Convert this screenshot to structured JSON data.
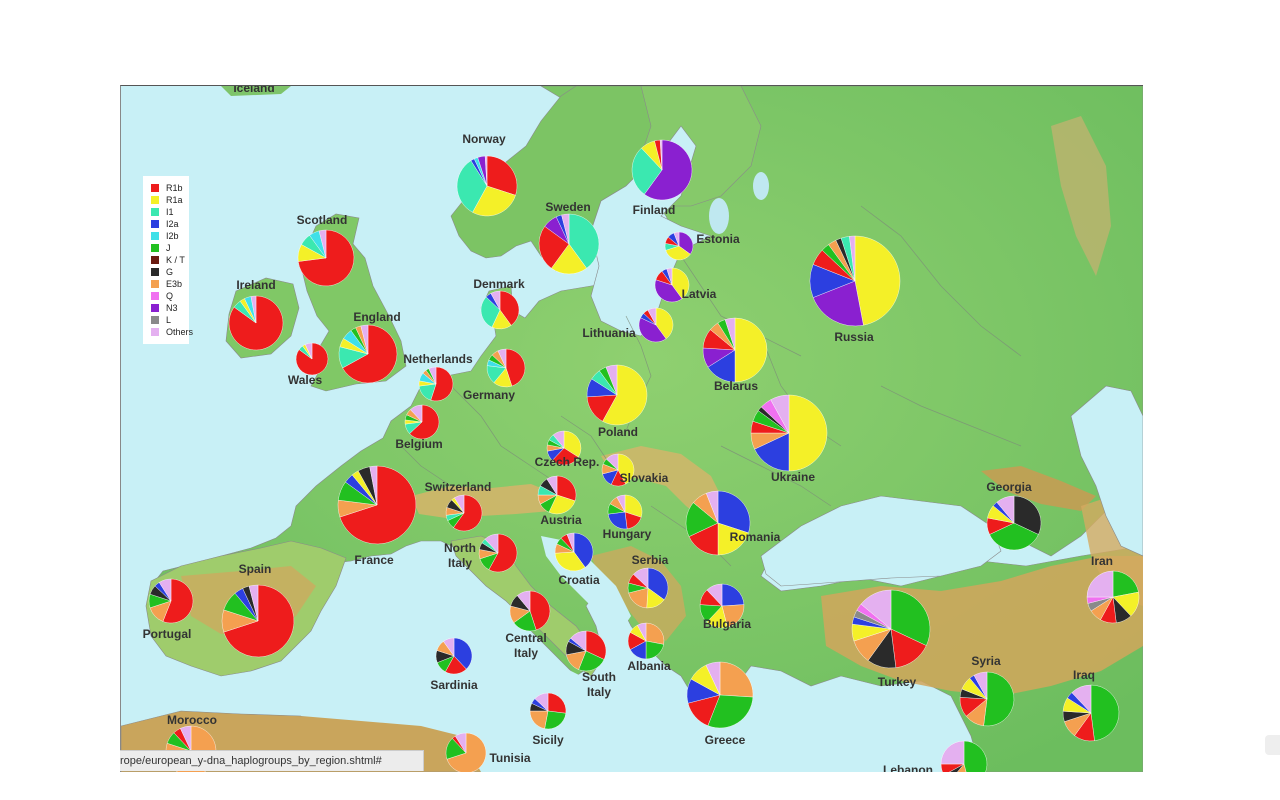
{
  "page_url_status": "rope/european_y-dna_haplogroups_by_region.shtml#",
  "colors": {
    "sea": "#c8f0f6",
    "land_low": "#7ec46a",
    "land_mid": "#9fcf6f",
    "land_high": "#d9b66a",
    "mountain": "#c69a55",
    "lake": "#bfe8f0"
  },
  "legend": [
    {
      "label": "R1b",
      "color": "#ee1c1c"
    },
    {
      "label": "R1a",
      "color": "#f4f028"
    },
    {
      "label": "I1",
      "color": "#3be8b0"
    },
    {
      "label": "I2a",
      "color": "#2c3fe0"
    },
    {
      "label": "I2b",
      "color": "#3fe0e8"
    },
    {
      "label": "J",
      "color": "#22c020"
    },
    {
      "label": "K / T",
      "color": "#6a1a10"
    },
    {
      "label": "G",
      "color": "#2a2a2a"
    },
    {
      "label": "E3b",
      "color": "#f4a050"
    },
    {
      "label": "Q",
      "color": "#f070f0"
    },
    {
      "label": "N3",
      "color": "#8a20d0"
    },
    {
      "label": "L",
      "color": "#8a8a8a"
    },
    {
      "label": "Others",
      "color": "#e4b0f0"
    }
  ],
  "regions": [
    {
      "name": "Iceland"
    },
    {
      "name": "Norway",
      "shares": {
        "R1b": 30,
        "R1a": 28,
        "I1": 33,
        "I2a": 2,
        "I2b": 2,
        "N3": 4,
        "Others": 1
      }
    },
    {
      "name": "Finland",
      "shares": {
        "N3": 60,
        "I1": 28,
        "R1a": 8,
        "R1b": 3,
        "Others": 1
      }
    },
    {
      "name": "Sweden",
      "shares": {
        "I1": 40,
        "R1a": 20,
        "R1b": 25,
        "N3": 8,
        "I2a": 3,
        "Others": 4
      }
    },
    {
      "name": "Scotland",
      "shares": {
        "R1b": 73,
        "R1a": 10,
        "I1": 7,
        "I2b": 6,
        "Others": 4
      }
    },
    {
      "name": "Estonia",
      "shares": {
        "N3": 35,
        "R1a": 35,
        "I1": 8,
        "R1b": 8,
        "I2a": 8,
        "Others": 6
      }
    },
    {
      "name": "Ireland",
      "shares": {
        "R1b": 85,
        "I1": 5,
        "R1a": 3,
        "I2b": 4,
        "Others": 3
      }
    },
    {
      "name": "Denmark",
      "shares": {
        "R1b": 40,
        "R1a": 17,
        "I1": 30,
        "I2a": 5,
        "Others": 8
      }
    },
    {
      "name": "Latvia",
      "shares": {
        "R1a": 40,
        "N3": 40,
        "R1b": 10,
        "I2a": 5,
        "Others": 5
      }
    },
    {
      "name": "Russia",
      "shares": {
        "R1a": 47,
        "N3": 22,
        "I2a": 12,
        "R1b": 6,
        "J": 3,
        "E3b": 3,
        "G": 2,
        "I1": 3,
        "Others": 2
      }
    },
    {
      "name": "England",
      "shares": {
        "R1b": 67,
        "I1": 12,
        "R1a": 5,
        "I2b": 6,
        "J": 3,
        "E3b": 3,
        "Others": 4
      }
    },
    {
      "name": "Lithuania",
      "shares": {
        "R1a": 40,
        "N3": 42,
        "I2a": 5,
        "R1b": 5,
        "Others": 8
      }
    },
    {
      "name": "Wales",
      "shares": {
        "R1b": 85,
        "I1": 5,
        "R1a": 3,
        "Others": 7
      }
    },
    {
      "name": "Netherlands",
      "shares": {
        "R1b": 55,
        "I1": 18,
        "R1a": 5,
        "I2b": 8,
        "E3b": 4,
        "J": 3,
        "Others": 7
      }
    },
    {
      "name": "Germany",
      "shares": {
        "R1b": 45,
        "R1a": 16,
        "I1": 16,
        "I2b": 5,
        "J": 5,
        "E3b": 6,
        "Others": 7
      }
    },
    {
      "name": "Belarus",
      "shares": {
        "R1a": 50,
        "I2a": 16,
        "N3": 10,
        "R1b": 10,
        "E3b": 5,
        "J": 4,
        "Others": 5
      }
    },
    {
      "name": "Poland",
      "shares": {
        "R1a": 58,
        "R1b": 16,
        "I2a": 10,
        "I1": 6,
        "J": 4,
        "Others": 6
      }
    },
    {
      "name": "Belgium",
      "shares": {
        "R1b": 63,
        "I1": 10,
        "R1a": 4,
        "J": 5,
        "E3b": 6,
        "Others": 12
      }
    },
    {
      "name": "Czech Rep.",
      "shares": {
        "R1a": 34,
        "R1b": 28,
        "I2a": 10,
        "E3b": 6,
        "J": 5,
        "I1": 6,
        "Others": 11
      }
    },
    {
      "name": "Ukraine",
      "shares": {
        "R1a": 50,
        "I2a": 18,
        "E3b": 7,
        "R1b": 5,
        "J": 5,
        "G": 2,
        "Q": 5,
        "Others": 8
      }
    },
    {
      "name": "Slovakia",
      "shares": {
        "R1a": 42,
        "R1b": 15,
        "I2a": 14,
        "E3b": 10,
        "J": 6,
        "Others": 13
      }
    },
    {
      "name": "Switzerland",
      "shares": {
        "R1b": 60,
        "J": 8,
        "I1": 5,
        "E3b": 7,
        "G": 8,
        "R1a": 3,
        "Others": 9
      }
    },
    {
      "name": "France",
      "shares": {
        "R1b": 70,
        "E3b": 7,
        "J": 8,
        "I2a": 4,
        "R1a": 3,
        "G": 5,
        "Others": 3
      }
    },
    {
      "name": "Austria",
      "shares": {
        "R1b": 30,
        "R1a": 27,
        "J": 10,
        "E3b": 8,
        "I1": 8,
        "G": 8,
        "Others": 9
      }
    },
    {
      "name": "Hungary",
      "shares": {
        "R1a": 30,
        "R1b": 18,
        "I2a": 25,
        "J": 10,
        "E3b": 9,
        "Others": 8
      }
    },
    {
      "name": "Romania",
      "shares": {
        "I2a": 30,
        "R1a": 20,
        "R1b": 18,
        "J": 18,
        "E3b": 8,
        "Others": 6
      }
    },
    {
      "name": "Georgia",
      "shares": {
        "G": 32,
        "J": 36,
        "R1b": 10,
        "R1a": 8,
        "I2a": 3,
        "Others": 11
      }
    },
    {
      "name": "North Italy",
      "shares": {
        "R1b": 58,
        "J": 12,
        "E3b": 8,
        "G": 6,
        "I1": 4,
        "Others": 12
      }
    },
    {
      "name": "Croatia",
      "shares": {
        "I2a": 40,
        "R1a": 34,
        "E3b": 8,
        "J": 6,
        "R1b": 6,
        "Others": 6
      }
    },
    {
      "name": "Iran",
      "shares": {
        "J": 22,
        "R1a": 16,
        "G": 10,
        "R1b": 10,
        "E3b": 8,
        "L": 5,
        "Q": 4,
        "Others": 25
      }
    },
    {
      "name": "Spain",
      "shares": {
        "R1b": 70,
        "E3b": 10,
        "J": 9,
        "I2a": 4,
        "G": 3,
        "Others": 4
      }
    },
    {
      "name": "Serbia",
      "shares": {
        "I2a": 35,
        "R1a": 16,
        "E3b": 20,
        "J": 8,
        "R1b": 8,
        "Others": 13
      }
    },
    {
      "name": "Portugal",
      "shares": {
        "R1b": 56,
        "E3b": 14,
        "J": 10,
        "G": 7,
        "I2a": 4,
        "Others": 9
      }
    },
    {
      "name": "Central Italy",
      "shares": {
        "R1b": 45,
        "J": 20,
        "E3b": 14,
        "G": 10,
        "Others": 11
      }
    },
    {
      "name": "Bulgaria",
      "shares": {
        "I2a": 24,
        "E3b": 22,
        "R1a": 16,
        "J": 14,
        "R1b": 12,
        "Others": 12
      }
    },
    {
      "name": "Turkey",
      "shares": {
        "J": 32,
        "R1b": 16,
        "G": 12,
        "E3b": 10,
        "R1a": 7,
        "I2a": 3,
        "L": 3,
        "Q": 3,
        "Others": 14
      }
    },
    {
      "name": "Albania",
      "shares": {
        "E3b": 28,
        "J": 22,
        "I2a": 17,
        "R1b": 16,
        "R1a": 9,
        "Others": 8
      }
    },
    {
      "name": "Sardinia",
      "shares": {
        "I2a": 38,
        "R1b": 20,
        "J": 11,
        "G": 11,
        "E3b": 10,
        "Others": 10
      }
    },
    {
      "name": "South Italy",
      "shares": {
        "R1b": 32,
        "J": 24,
        "E3b": 16,
        "G": 11,
        "I2a": 3,
        "Others": 14
      }
    },
    {
      "name": "Syria",
      "shares": {
        "J": 52,
        "E3b": 12,
        "R1b": 12,
        "G": 5,
        "R1a": 8,
        "I2a": 3,
        "Others": 8
      }
    },
    {
      "name": "Iraq",
      "shares": {
        "J": 48,
        "R1b": 12,
        "E3b": 10,
        "G": 6,
        "R1a": 8,
        "I2a": 4,
        "Others": 12
      }
    },
    {
      "name": "Sicily",
      "shares": {
        "R1b": 27,
        "J": 26,
        "E3b": 22,
        "G": 7,
        "I2a": 5,
        "Others": 13
      }
    },
    {
      "name": "Greece",
      "shares": {
        "E3b": 26,
        "J": 30,
        "R1b": 15,
        "I2a": 12,
        "R1a": 10,
        "Others": 7
      }
    },
    {
      "name": "Morocco",
      "shares": {
        "E3b": 80,
        "J": 8,
        "R1b": 5,
        "Others": 7
      }
    },
    {
      "name": "Tunisia",
      "shares": {
        "E3b": 70,
        "J": 18,
        "R1b": 3,
        "Others": 9
      }
    },
    {
      "name": "Lebanon",
      "shares": {
        "J": 46,
        "E3b": 15,
        "G": 6,
        "R1b": 8,
        "Others": 25
      }
    }
  ]
}
